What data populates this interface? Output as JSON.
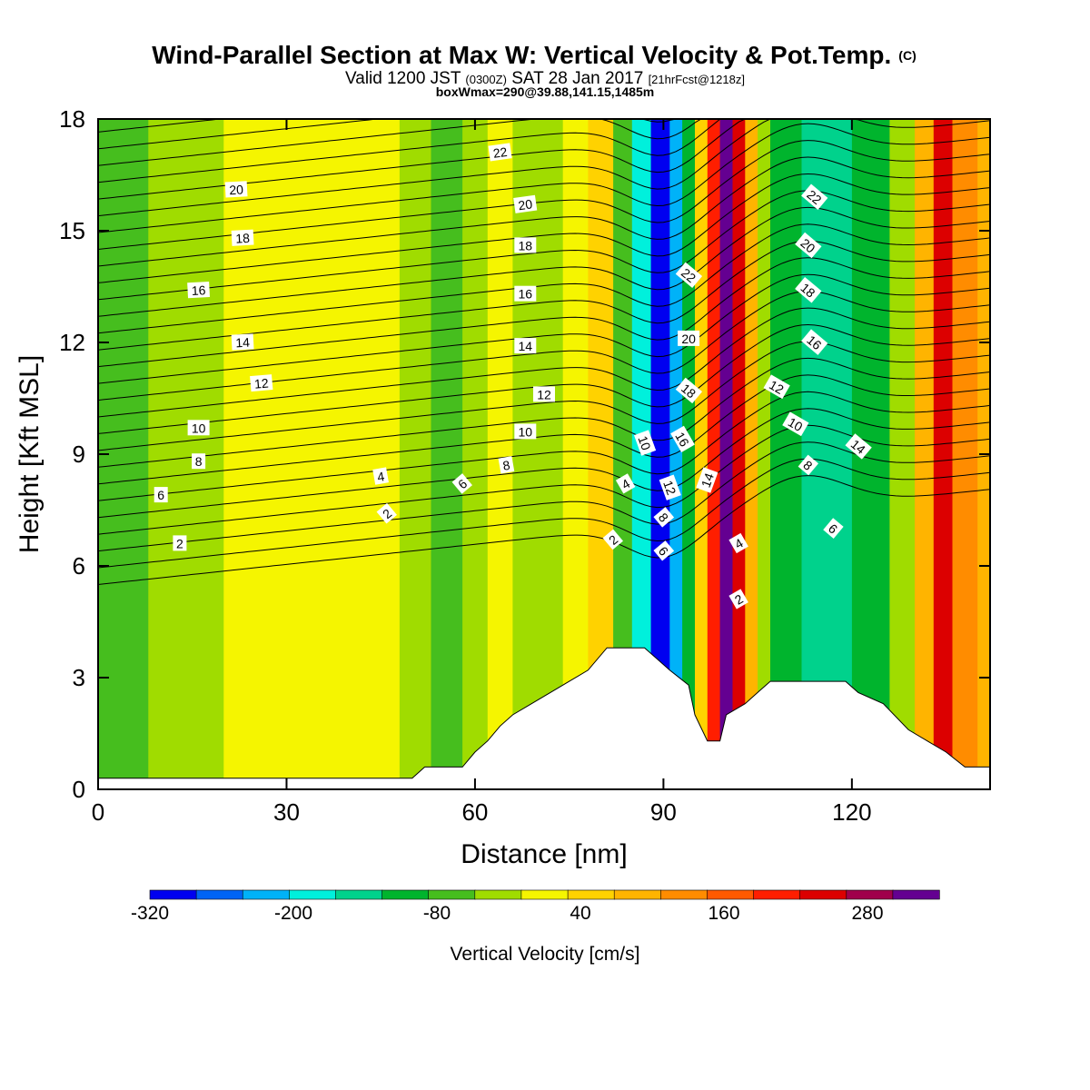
{
  "title": {
    "main": "Wind-Parallel Section at Max W: Vertical Velocity & Pot.Temp.",
    "copyright": "(C)",
    "valid_prefix": "Valid 1200 JST",
    "valid_utc": "(0300Z)",
    "valid_date": "SAT 28 Jan 2017",
    "forecast": "[21hrFcst@1218z]",
    "box": "boxWmax=290@39.88,141.15,1485m"
  },
  "colors": {
    "background": "#ffffff",
    "terrain": "#ffffff",
    "contour": "#000000"
  },
  "chart_data": {
    "type": "heatmap",
    "xlabel": "Distance [nm]",
    "ylabel": "Height [Kft MSL]",
    "xlim": [
      0,
      142
    ],
    "ylim": [
      0,
      18
    ],
    "x_ticks": [
      0,
      30,
      60,
      90,
      120
    ],
    "y_ticks": [
      0,
      3,
      6,
      9,
      12,
      15,
      18
    ],
    "colorbar": {
      "label": "Vertical Velocity [cm/s]",
      "range": [
        -320,
        340
      ],
      "tick_labels": [
        "-320",
        "-200",
        "-80",
        "40",
        "160",
        "280"
      ],
      "tick_values": [
        -320,
        -200,
        -80,
        40,
        160,
        280
      ],
      "colors": [
        "#0000f0",
        "#0064f5",
        "#00b2f8",
        "#00f0dc",
        "#00d28c",
        "#00b42d",
        "#46be1e",
        "#a0dc00",
        "#f5f500",
        "#ffd200",
        "#ffb400",
        "#ff8c00",
        "#ff5a00",
        "#ff1e00",
        "#dc0000",
        "#a0004b",
        "#640091"
      ]
    },
    "vertical_velocity_bands": [
      {
        "x": [
          0,
          8
        ],
        "w": -50
      },
      {
        "x": [
          8,
          20
        ],
        "w": -30
      },
      {
        "x": [
          20,
          48
        ],
        "w": 20
      },
      {
        "x": [
          48,
          53
        ],
        "w": -30
      },
      {
        "x": [
          53,
          58
        ],
        "w": -80
      },
      {
        "x": [
          58,
          62
        ],
        "w": -30
      },
      {
        "x": [
          62,
          66
        ],
        "w": 20
      },
      {
        "x": [
          66,
          70
        ],
        "w": -40
      },
      {
        "x": [
          70,
          74
        ],
        "w": -20
      },
      {
        "x": [
          74,
          78
        ],
        "w": 20
      },
      {
        "x": [
          78,
          82
        ],
        "w": 60
      },
      {
        "x": [
          82,
          85
        ],
        "w": -60
      },
      {
        "x": [
          85,
          88
        ],
        "w": -180
      },
      {
        "x": [
          88,
          91
        ],
        "w": -300
      },
      {
        "x": [
          91,
          93
        ],
        "w": -220
      },
      {
        "x": [
          93,
          95
        ],
        "w": -100
      },
      {
        "x": [
          95,
          97
        ],
        "w": 40
      },
      {
        "x": [
          97,
          99
        ],
        "w": 200
      },
      {
        "x": [
          99,
          101
        ],
        "w": 320
      },
      {
        "x": [
          101,
          103
        ],
        "w": 230
      },
      {
        "x": [
          103,
          105
        ],
        "w": 100
      },
      {
        "x": [
          105,
          107
        ],
        "w": -20
      },
      {
        "x": [
          107,
          112
        ],
        "w": -100
      },
      {
        "x": [
          112,
          120
        ],
        "w": -150
      },
      {
        "x": [
          120,
          126
        ],
        "w": -100
      },
      {
        "x": [
          126,
          130
        ],
        "w": -40
      },
      {
        "x": [
          130,
          133
        ],
        "w": 100
      },
      {
        "x": [
          133,
          136
        ],
        "w": 230
      },
      {
        "x": [
          136,
          140
        ],
        "w": 140
      },
      {
        "x": [
          140,
          142
        ],
        "w": 80
      }
    ],
    "terrain_height": [
      {
        "x": 0,
        "h": 0.3
      },
      {
        "x": 50,
        "h": 0.3
      },
      {
        "x": 52,
        "h": 0.6
      },
      {
        "x": 58,
        "h": 0.6
      },
      {
        "x": 60,
        "h": 1.0
      },
      {
        "x": 62,
        "h": 1.3
      },
      {
        "x": 64,
        "h": 1.7
      },
      {
        "x": 66,
        "h": 2.0
      },
      {
        "x": 69,
        "h": 2.3
      },
      {
        "x": 72,
        "h": 2.6
      },
      {
        "x": 75,
        "h": 2.9
      },
      {
        "x": 78,
        "h": 3.2
      },
      {
        "x": 81,
        "h": 3.8
      },
      {
        "x": 87,
        "h": 3.8
      },
      {
        "x": 89,
        "h": 3.5
      },
      {
        "x": 91,
        "h": 3.2
      },
      {
        "x": 94,
        "h": 2.8
      },
      {
        "x": 95,
        "h": 2.0
      },
      {
        "x": 97,
        "h": 1.3
      },
      {
        "x": 99,
        "h": 1.3
      },
      {
        "x": 100,
        "h": 2.0
      },
      {
        "x": 103,
        "h": 2.3
      },
      {
        "x": 105,
        "h": 2.6
      },
      {
        "x": 107,
        "h": 2.9
      },
      {
        "x": 119,
        "h": 2.9
      },
      {
        "x": 121,
        "h": 2.6
      },
      {
        "x": 125,
        "h": 2.3
      },
      {
        "x": 129,
        "h": 1.6
      },
      {
        "x": 132,
        "h": 1.3
      },
      {
        "x": 135,
        "h": 1.0
      },
      {
        "x": 138,
        "h": 0.6
      },
      {
        "x": 142,
        "h": 0.6
      }
    ],
    "contour_labels": [
      {
        "text": "2",
        "x": 13,
        "y": 6.6,
        "angle": 0
      },
      {
        "text": "6",
        "x": 10,
        "y": 7.9,
        "angle": 0
      },
      {
        "text": "8",
        "x": 16,
        "y": 8.8,
        "angle": 0
      },
      {
        "text": "10",
        "x": 16,
        "y": 9.7,
        "angle": 0
      },
      {
        "text": "12",
        "x": 26,
        "y": 10.9,
        "angle": -5
      },
      {
        "text": "14",
        "x": 23,
        "y": 12.0,
        "angle": -3
      },
      {
        "text": "16",
        "x": 16,
        "y": 13.4,
        "angle": -3
      },
      {
        "text": "18",
        "x": 23,
        "y": 14.8,
        "angle": -3
      },
      {
        "text": "20",
        "x": 22,
        "y": 16.1,
        "angle": -3
      },
      {
        "text": "4",
        "x": 45,
        "y": 8.4,
        "angle": -10
      },
      {
        "text": "2",
        "x": 46,
        "y": 7.4,
        "angle": -40
      },
      {
        "text": "6",
        "x": 58,
        "y": 8.2,
        "angle": -40
      },
      {
        "text": "8",
        "x": 65,
        "y": 8.7,
        "angle": -10
      },
      {
        "text": "10",
        "x": 68,
        "y": 9.6,
        "angle": 0
      },
      {
        "text": "12",
        "x": 71,
        "y": 10.6,
        "angle": 0
      },
      {
        "text": "14",
        "x": 68,
        "y": 11.9,
        "angle": 0
      },
      {
        "text": "16",
        "x": 68,
        "y": 13.3,
        "angle": 0
      },
      {
        "text": "18",
        "x": 68,
        "y": 14.6,
        "angle": 0
      },
      {
        "text": "20",
        "x": 68,
        "y": 15.7,
        "angle": -8
      },
      {
        "text": "22",
        "x": 64,
        "y": 17.1,
        "angle": -8
      },
      {
        "text": "2",
        "x": 82,
        "y": 6.7,
        "angle": -40
      },
      {
        "text": "4",
        "x": 84,
        "y": 8.2,
        "angle": -30
      },
      {
        "text": "10",
        "x": 87,
        "y": 9.3,
        "angle": 70
      },
      {
        "text": "12",
        "x": 91,
        "y": 8.1,
        "angle": 70
      },
      {
        "text": "8",
        "x": 90,
        "y": 7.3,
        "angle": 50
      },
      {
        "text": "6",
        "x": 90,
        "y": 6.4,
        "angle": 50
      },
      {
        "text": "16",
        "x": 93,
        "y": 9.4,
        "angle": 60
      },
      {
        "text": "18",
        "x": 94,
        "y": 10.7,
        "angle": 40
      },
      {
        "text": "20",
        "x": 94,
        "y": 12.1,
        "angle": 0
      },
      {
        "text": "22",
        "x": 94,
        "y": 13.8,
        "angle": 40
      },
      {
        "text": "14",
        "x": 97,
        "y": 8.3,
        "angle": -70
      },
      {
        "text": "4",
        "x": 102,
        "y": 6.6,
        "angle": -30
      },
      {
        "text": "2",
        "x": 102,
        "y": 5.1,
        "angle": -30
      },
      {
        "text": "12",
        "x": 108,
        "y": 10.8,
        "angle": 30
      },
      {
        "text": "10",
        "x": 111,
        "y": 9.8,
        "angle": 30
      },
      {
        "text": "8",
        "x": 113,
        "y": 8.7,
        "angle": 40
      },
      {
        "text": "6",
        "x": 117,
        "y": 7.0,
        "angle": 40
      },
      {
        "text": "14",
        "x": 121,
        "y": 9.2,
        "angle": 40
      },
      {
        "text": "16",
        "x": 114,
        "y": 12.0,
        "angle": 40
      },
      {
        "text": "18",
        "x": 113,
        "y": 13.4,
        "angle": 40
      },
      {
        "text": "20",
        "x": 113,
        "y": 14.6,
        "angle": 40
      },
      {
        "text": "22",
        "x": 114,
        "y": 15.9,
        "angle": 40
      }
    ]
  }
}
